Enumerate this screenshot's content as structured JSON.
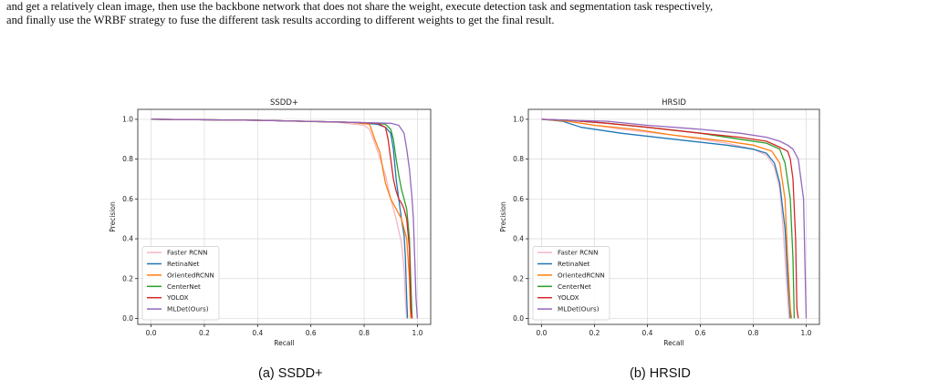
{
  "body_text": {
    "line1": "and get a relatively clean image, then use the backbone network that does not share the weight, execute detection task and segmentation task respectively,",
    "line2": "and finally use the WRBF strategy to fuse the different task results according to different weights to get the final result."
  },
  "captions": [
    "(a) SSDD+",
    "(b) HRSID"
  ],
  "chart_data": [
    {
      "type": "line",
      "title": "SSDD+",
      "xlabel": "Recall",
      "ylabel": "Precision",
      "xlim": [
        -0.05,
        1.05
      ],
      "ylim": [
        -0.03,
        1.05
      ],
      "xticks": [
        "0.0",
        "0.2",
        "0.4",
        "0.6",
        "0.8",
        "1.0"
      ],
      "yticks": [
        "0.0",
        "0.2",
        "0.4",
        "0.6",
        "0.8",
        "1.0"
      ],
      "grid": true,
      "legend": "lower-left",
      "series": [
        {
          "name": "Faster RCNN",
          "color": "#f4b6c2",
          "points": [
            [
              0,
              1
            ],
            [
              0.4,
              0.995
            ],
            [
              0.7,
              0.985
            ],
            [
              0.8,
              0.97
            ],
            [
              0.82,
              0.95
            ],
            [
              0.84,
              0.88
            ],
            [
              0.86,
              0.8
            ],
            [
              0.88,
              0.72
            ],
            [
              0.9,
              0.6
            ],
            [
              0.92,
              0.5
            ],
            [
              0.93,
              0.44
            ],
            [
              0.94,
              0.38
            ],
            [
              0.95,
              0.25
            ],
            [
              0.955,
              0.1
            ],
            [
              0.96,
              0
            ]
          ]
        },
        {
          "name": "RetinaNet",
          "color": "#1f77b4",
          "points": [
            [
              0,
              1
            ],
            [
              0.4,
              0.995
            ],
            [
              0.75,
              0.985
            ],
            [
              0.85,
              0.975
            ],
            [
              0.88,
              0.96
            ],
            [
              0.9,
              0.93
            ],
            [
              0.91,
              0.85
            ],
            [
              0.92,
              0.7
            ],
            [
              0.93,
              0.6
            ],
            [
              0.94,
              0.5
            ],
            [
              0.95,
              0.42
            ],
            [
              0.955,
              0.3
            ],
            [
              0.96,
              0.1
            ],
            [
              0.963,
              0
            ]
          ]
        },
        {
          "name": "OrientedRCNN",
          "color": "#ff7f0e",
          "points": [
            [
              0,
              1
            ],
            [
              0.4,
              0.995
            ],
            [
              0.75,
              0.985
            ],
            [
              0.82,
              0.975
            ],
            [
              0.83,
              0.94
            ],
            [
              0.84,
              0.9
            ],
            [
              0.86,
              0.83
            ],
            [
              0.87,
              0.75
            ],
            [
              0.88,
              0.68
            ],
            [
              0.9,
              0.6
            ],
            [
              0.92,
              0.55
            ],
            [
              0.94,
              0.5
            ],
            [
              0.96,
              0.4
            ],
            [
              0.97,
              0.2
            ],
            [
              0.975,
              0
            ]
          ]
        },
        {
          "name": "CenterNet",
          "color": "#2ca02c",
          "points": [
            [
              0,
              1
            ],
            [
              0.4,
              0.995
            ],
            [
              0.75,
              0.985
            ],
            [
              0.85,
              0.98
            ],
            [
              0.88,
              0.975
            ],
            [
              0.9,
              0.95
            ],
            [
              0.91,
              0.9
            ],
            [
              0.92,
              0.8
            ],
            [
              0.93,
              0.72
            ],
            [
              0.94,
              0.65
            ],
            [
              0.95,
              0.6
            ],
            [
              0.96,
              0.55
            ],
            [
              0.97,
              0.4
            ],
            [
              0.975,
              0.2
            ],
            [
              0.98,
              0
            ]
          ]
        },
        {
          "name": "YOLOX",
          "color": "#d62728",
          "points": [
            [
              0,
              1
            ],
            [
              0.4,
              0.995
            ],
            [
              0.75,
              0.985
            ],
            [
              0.85,
              0.98
            ],
            [
              0.88,
              0.96
            ],
            [
              0.89,
              0.9
            ],
            [
              0.9,
              0.8
            ],
            [
              0.91,
              0.7
            ],
            [
              0.92,
              0.64
            ],
            [
              0.93,
              0.6
            ],
            [
              0.94,
              0.58
            ],
            [
              0.95,
              0.55
            ],
            [
              0.96,
              0.5
            ],
            [
              0.97,
              0.35
            ],
            [
              0.975,
              0.05
            ],
            [
              0.98,
              0
            ]
          ]
        },
        {
          "name": "MLDet(Ours)",
          "color": "#9467bd",
          "points": [
            [
              0,
              1
            ],
            [
              0.4,
              0.995
            ],
            [
              0.75,
              0.985
            ],
            [
              0.9,
              0.98
            ],
            [
              0.93,
              0.97
            ],
            [
              0.95,
              0.93
            ],
            [
              0.96,
              0.85
            ],
            [
              0.97,
              0.75
            ],
            [
              0.98,
              0.6
            ],
            [
              0.985,
              0.5
            ],
            [
              0.99,
              0.3
            ],
            [
              0.995,
              0.1
            ],
            [
              1.0,
              0
            ]
          ]
        }
      ]
    },
    {
      "type": "line",
      "title": "HRSID",
      "xlabel": "Recall",
      "ylabel": "Precision",
      "xlim": [
        -0.05,
        1.05
      ],
      "ylim": [
        -0.03,
        1.05
      ],
      "xticks": [
        "0.0",
        "0.2",
        "0.4",
        "0.6",
        "0.8",
        "1.0"
      ],
      "yticks": [
        "0.0",
        "0.2",
        "0.4",
        "0.6",
        "0.8",
        "1.0"
      ],
      "grid": true,
      "legend": "lower-left",
      "series": [
        {
          "name": "Faster RCNN",
          "color": "#f4b6c2",
          "points": [
            [
              0,
              1
            ],
            [
              0.1,
              0.99
            ],
            [
              0.2,
              0.97
            ],
            [
              0.3,
              0.95
            ],
            [
              0.5,
              0.92
            ],
            [
              0.7,
              0.88
            ],
            [
              0.8,
              0.85
            ],
            [
              0.85,
              0.82
            ],
            [
              0.88,
              0.76
            ],
            [
              0.9,
              0.65
            ],
            [
              0.91,
              0.5
            ],
            [
              0.92,
              0.3
            ],
            [
              0.93,
              0.1
            ],
            [
              0.935,
              0
            ]
          ]
        },
        {
          "name": "RetinaNet",
          "color": "#1f77b4",
          "points": [
            [
              0,
              1
            ],
            [
              0.08,
              0.99
            ],
            [
              0.15,
              0.96
            ],
            [
              0.3,
              0.93
            ],
            [
              0.5,
              0.9
            ],
            [
              0.7,
              0.87
            ],
            [
              0.8,
              0.85
            ],
            [
              0.85,
              0.83
            ],
            [
              0.88,
              0.78
            ],
            [
              0.9,
              0.68
            ],
            [
              0.92,
              0.45
            ],
            [
              0.93,
              0.2
            ],
            [
              0.94,
              0
            ]
          ]
        },
        {
          "name": "OrientedRCNN",
          "color": "#ff7f0e",
          "points": [
            [
              0,
              1
            ],
            [
              0.1,
              0.99
            ],
            [
              0.2,
              0.97
            ],
            [
              0.35,
              0.95
            ],
            [
              0.5,
              0.92
            ],
            [
              0.7,
              0.89
            ],
            [
              0.8,
              0.87
            ],
            [
              0.87,
              0.84
            ],
            [
              0.9,
              0.78
            ],
            [
              0.92,
              0.6
            ],
            [
              0.93,
              0.3
            ],
            [
              0.94,
              0.05
            ],
            [
              0.945,
              0
            ]
          ]
        },
        {
          "name": "CenterNet",
          "color": "#2ca02c",
          "points": [
            [
              0,
              1
            ],
            [
              0.1,
              0.995
            ],
            [
              0.25,
              0.98
            ],
            [
              0.4,
              0.96
            ],
            [
              0.6,
              0.93
            ],
            [
              0.75,
              0.9
            ],
            [
              0.85,
              0.88
            ],
            [
              0.9,
              0.85
            ],
            [
              0.92,
              0.78
            ],
            [
              0.94,
              0.6
            ],
            [
              0.95,
              0.3
            ],
            [
              0.955,
              0
            ]
          ]
        },
        {
          "name": "YOLOX",
          "color": "#d62728",
          "points": [
            [
              0,
              1
            ],
            [
              0.1,
              0.995
            ],
            [
              0.25,
              0.98
            ],
            [
              0.4,
              0.96
            ],
            [
              0.6,
              0.93
            ],
            [
              0.75,
              0.91
            ],
            [
              0.85,
              0.89
            ],
            [
              0.9,
              0.86
            ],
            [
              0.93,
              0.84
            ],
            [
              0.94,
              0.8
            ],
            [
              0.95,
              0.7
            ],
            [
              0.96,
              0.4
            ],
            [
              0.965,
              0.05
            ],
            [
              0.97,
              0
            ]
          ]
        },
        {
          "name": "MLDet(Ours)",
          "color": "#9467bd",
          "points": [
            [
              0,
              1
            ],
            [
              0.1,
              0.995
            ],
            [
              0.25,
              0.99
            ],
            [
              0.4,
              0.97
            ],
            [
              0.6,
              0.95
            ],
            [
              0.75,
              0.93
            ],
            [
              0.85,
              0.91
            ],
            [
              0.9,
              0.89
            ],
            [
              0.93,
              0.87
            ],
            [
              0.95,
              0.85
            ],
            [
              0.97,
              0.8
            ],
            [
              0.98,
              0.7
            ],
            [
              0.99,
              0.6
            ],
            [
              0.995,
              0.3
            ],
            [
              1.0,
              0
            ]
          ]
        }
      ]
    }
  ]
}
